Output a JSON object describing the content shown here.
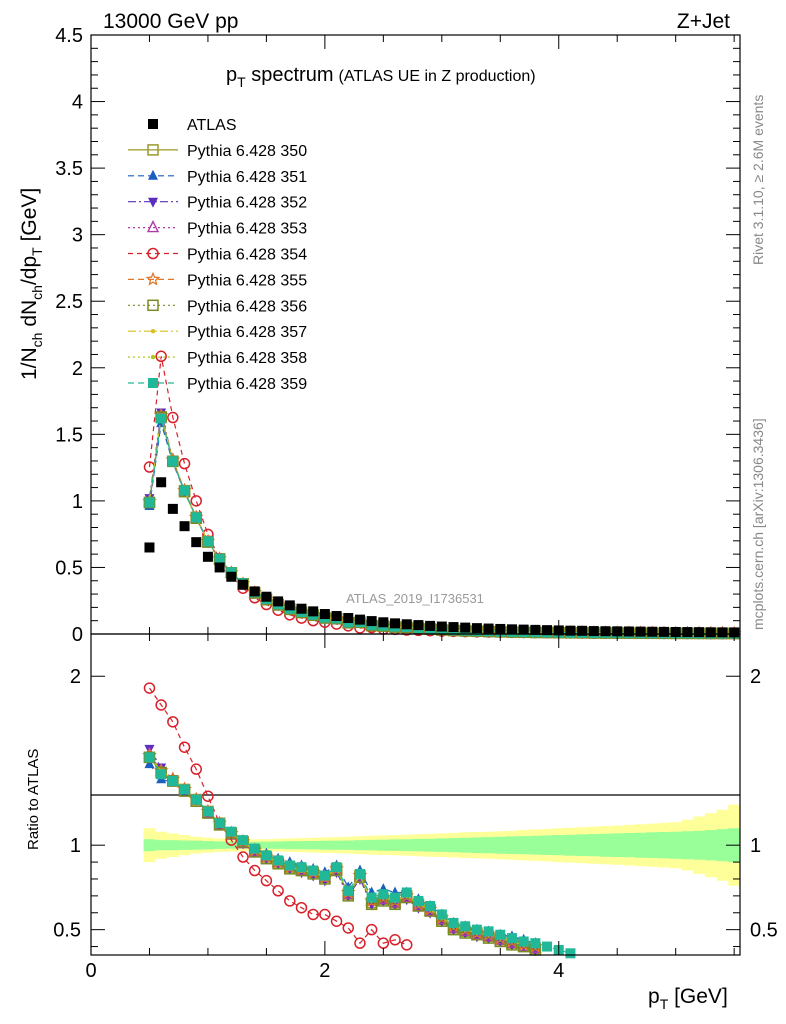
{
  "header": {
    "energy_label": "13000 GeV pp",
    "process_label": "Z+Jet"
  },
  "side_labels": {
    "rivet": "Rivet 3.1.10, ≥ 2.6M events",
    "mcplots": "mcplots.cern.ch [arXiv:1306.3436]"
  },
  "chart_data": {
    "type": "line",
    "title": "p_T spectrum",
    "title_main": "p",
    "title_sub": "T",
    "title_rest": " spectrum",
    "title_note": "(ATLAS UE in Z production)",
    "watermark": "ATLAS_2019_I1736531",
    "xlabel": "p_T [GeV]",
    "xlabel_main": "p",
    "xlabel_sub": "T",
    "xlabel_rest": " [GeV]",
    "ylabel": "1/N_ch dN_ch/dp_T [GeV]",
    "ylabel_parts": {
      "a": "1/N",
      "b": "ch",
      "c": " dN",
      "d": "ch",
      "e": "/dp",
      "f": "T",
      "g": " [GeV]"
    },
    "ratio_ylabel": "Ratio to ATLAS",
    "xlim": [
      0,
      5.55
    ],
    "ylim": [
      0,
      4.5
    ],
    "ratio_ylim": [
      0.35,
      2.25
    ],
    "x_ticks": [
      "0",
      "2",
      "4"
    ],
    "y_ticks": [
      "0",
      "0.5",
      "1",
      "1.5",
      "2",
      "2.5",
      "3",
      "3.5",
      "4",
      "4.5"
    ],
    "ratio_ticks": [
      "0.5",
      "1",
      "2"
    ],
    "legend_position": "top-left",
    "x": [
      0.5,
      0.6,
      0.7,
      0.8,
      0.9,
      1.0,
      1.1,
      1.2,
      1.3,
      1.4,
      1.5,
      1.6,
      1.7,
      1.8,
      1.9,
      2.0,
      2.1,
      2.2,
      2.3,
      2.4,
      2.5,
      2.6,
      2.7,
      2.8,
      2.9,
      3.0,
      3.1,
      3.2,
      3.3,
      3.4,
      3.5,
      3.6,
      3.7,
      3.8,
      3.9,
      4.0,
      4.1,
      4.2,
      4.3,
      4.4,
      4.5,
      4.6,
      4.7,
      4.8,
      4.9,
      5.0,
      5.1,
      5.2,
      5.3,
      5.4,
      5.5
    ],
    "data_series": {
      "name": "ATLAS",
      "color": "#000000",
      "values": [
        0.65,
        1.14,
        0.94,
        0.81,
        0.69,
        0.58,
        0.5,
        0.43,
        0.37,
        0.32,
        0.28,
        0.245,
        0.215,
        0.19,
        0.17,
        0.15,
        0.135,
        0.12,
        0.108,
        0.097,
        0.088,
        0.08,
        0.073,
        0.067,
        0.061,
        0.056,
        0.052,
        0.048,
        0.044,
        0.041,
        0.038,
        0.035,
        0.033,
        0.031,
        0.029,
        0.027,
        0.025,
        0.024,
        0.022,
        0.021,
        0.02,
        0.019,
        0.018,
        0.017,
        0.016,
        0.015,
        0.0145,
        0.014,
        0.013,
        0.0125,
        0.012
      ],
      "uncertainty_inner": [
        0.035,
        0.03,
        0.03,
        0.028,
        0.027,
        0.025,
        0.022,
        0.02,
        0.02,
        0.02,
        0.021,
        0.022,
        0.023,
        0.024,
        0.025,
        0.026,
        0.027,
        0.028,
        0.03,
        0.031,
        0.033,
        0.034,
        0.035,
        0.037,
        0.038,
        0.04,
        0.042,
        0.044,
        0.046,
        0.048,
        0.05,
        0.052,
        0.054,
        0.056,
        0.058,
        0.06,
        0.062,
        0.064,
        0.066,
        0.068,
        0.07,
        0.072,
        0.074,
        0.076,
        0.078,
        0.08,
        0.083,
        0.086,
        0.09,
        0.095,
        0.1
      ],
      "uncertainty_outer": [
        0.1,
        0.08,
        0.07,
        0.06,
        0.05,
        0.045,
        0.04,
        0.038,
        0.036,
        0.035,
        0.036,
        0.038,
        0.04,
        0.042,
        0.044,
        0.046,
        0.048,
        0.05,
        0.053,
        0.056,
        0.058,
        0.06,
        0.062,
        0.065,
        0.068,
        0.07,
        0.073,
        0.076,
        0.078,
        0.08,
        0.083,
        0.086,
        0.09,
        0.093,
        0.096,
        0.1,
        0.103,
        0.106,
        0.11,
        0.113,
        0.116,
        0.12,
        0.124,
        0.128,
        0.132,
        0.136,
        0.15,
        0.17,
        0.19,
        0.21,
        0.24
      ]
    },
    "series": [
      {
        "name": "Pythia 6.428 350",
        "color": "#9a9a2a",
        "marker": "square-open",
        "dash": "",
        "ratio": [
          1.52,
          1.43,
          1.38,
          1.33,
          1.27,
          1.2,
          1.13,
          1.07,
          1.02,
          0.97,
          0.93,
          0.9,
          0.87,
          0.85,
          0.84,
          0.81,
          0.86,
          0.71,
          0.82,
          0.66,
          0.68,
          0.66,
          0.7,
          0.65,
          0.62,
          0.56,
          0.51,
          0.49,
          0.48,
          0.46,
          0.44,
          0.42,
          0.4,
          0.39
        ]
      },
      {
        "name": "Pythia 6.428 351",
        "color": "#1a5fbf",
        "marker": "triangle-up",
        "dash": "6,4",
        "ratio": [
          1.48,
          1.39,
          1.37,
          1.32,
          1.27,
          1.2,
          1.13,
          1.08,
          1.03,
          0.98,
          0.95,
          0.92,
          0.9,
          0.88,
          0.86,
          0.84,
          0.88,
          0.75,
          0.85,
          0.72,
          0.74,
          0.72,
          0.72,
          0.68,
          0.64,
          0.59,
          0.54,
          0.52,
          0.5,
          0.49,
          0.47,
          0.46,
          0.44,
          0.42
        ]
      },
      {
        "name": "Pythia 6.428 352",
        "color": "#5a2fc0",
        "marker": "triangle-down",
        "dash": "8,3,2,3",
        "ratio": [
          1.57,
          1.46,
          1.39,
          1.32,
          1.27,
          1.19,
          1.12,
          1.06,
          1.01,
          0.96,
          0.92,
          0.89,
          0.86,
          0.84,
          0.82,
          0.79,
          0.84,
          0.7,
          0.8,
          0.65,
          0.67,
          0.65,
          0.68,
          0.63,
          0.6,
          0.55,
          0.5,
          0.48,
          0.46,
          0.45,
          0.43,
          0.41,
          0.4,
          0.38
        ]
      },
      {
        "name": "Pythia 6.428 353",
        "color": "#b03aa8",
        "marker": "triangle-open",
        "dash": "2,3",
        "ratio": [
          1.54,
          1.44,
          1.39,
          1.33,
          1.27,
          1.19,
          1.12,
          1.06,
          1.01,
          0.96,
          0.93,
          0.9,
          0.87,
          0.85,
          0.84,
          0.81,
          0.86,
          0.71,
          0.81,
          0.67,
          0.68,
          0.66,
          0.69,
          0.64,
          0.61,
          0.56,
          0.51,
          0.49,
          0.47,
          0.46,
          0.44,
          0.42,
          0.4,
          0.39
        ]
      },
      {
        "name": "Pythia 6.428 354",
        "color": "#d8202a",
        "marker": "circle-open",
        "dash": "5,4",
        "ratio": [
          1.93,
          1.83,
          1.73,
          1.58,
          1.45,
          1.29,
          1.13,
          1.03,
          0.93,
          0.85,
          0.79,
          0.73,
          0.67,
          0.63,
          0.59,
          0.59,
          0.55,
          0.51,
          0.42,
          0.5,
          0.42,
          0.44,
          0.41
        ]
      },
      {
        "name": "Pythia 6.428 355",
        "color": "#e0762a",
        "marker": "star",
        "dash": "6,4",
        "ratio": [
          1.53,
          1.44,
          1.39,
          1.33,
          1.27,
          1.2,
          1.13,
          1.07,
          1.02,
          0.97,
          0.93,
          0.9,
          0.87,
          0.86,
          0.84,
          0.81,
          0.86,
          0.72,
          0.82,
          0.67,
          0.69,
          0.67,
          0.7,
          0.65,
          0.62,
          0.57,
          0.52,
          0.5,
          0.48,
          0.47,
          0.45,
          0.43,
          0.41,
          0.4
        ]
      },
      {
        "name": "Pythia 6.428 356",
        "color": "#7a8a22",
        "marker": "square-open",
        "dash": "2,3",
        "ratio": [
          1.52,
          1.43,
          1.38,
          1.32,
          1.26,
          1.19,
          1.12,
          1.07,
          1.02,
          0.96,
          0.92,
          0.89,
          0.86,
          0.85,
          0.83,
          0.8,
          0.85,
          0.7,
          0.81,
          0.65,
          0.67,
          0.65,
          0.69,
          0.64,
          0.61,
          0.55,
          0.5,
          0.48,
          0.47,
          0.45,
          0.43,
          0.41,
          0.4,
          0.38
        ]
      },
      {
        "name": "Pythia 6.428 357",
        "color": "#d8c020",
        "marker": "small-dot",
        "dash": "8,3,2,3",
        "ratio": [
          1.53,
          1.44,
          1.39,
          1.33,
          1.27,
          1.2,
          1.13,
          1.07,
          1.02,
          0.97,
          0.93,
          0.9,
          0.87,
          0.85,
          0.84,
          0.81,
          0.86,
          0.72,
          0.82,
          0.67,
          0.69,
          0.67,
          0.7,
          0.65,
          0.62,
          0.57,
          0.52,
          0.5,
          0.48,
          0.47,
          0.45,
          0.43,
          0.41,
          0.4
        ]
      },
      {
        "name": "Pythia 6.428 358",
        "color": "#a8c820",
        "marker": "small-dot",
        "dash": "2,3",
        "ratio": [
          1.53,
          1.44,
          1.39,
          1.33,
          1.27,
          1.2,
          1.13,
          1.07,
          1.02,
          0.97,
          0.93,
          0.9,
          0.87,
          0.85,
          0.84,
          0.81,
          0.86,
          0.72,
          0.82,
          0.67,
          0.69,
          0.67,
          0.7,
          0.65,
          0.62,
          0.57,
          0.52,
          0.5,
          0.48,
          0.47,
          0.45,
          0.43,
          0.41,
          0.4
        ]
      },
      {
        "name": "Pythia 6.428 359",
        "color": "#20b898",
        "marker": "square-filled",
        "dash": "6,4",
        "ratio": [
          1.52,
          1.42,
          1.38,
          1.33,
          1.27,
          1.2,
          1.13,
          1.08,
          1.03,
          0.98,
          0.94,
          0.91,
          0.88,
          0.87,
          0.85,
          0.82,
          0.87,
          0.73,
          0.83,
          0.69,
          0.71,
          0.69,
          0.72,
          0.67,
          0.64,
          0.59,
          0.54,
          0.52,
          0.5,
          0.49,
          0.47,
          0.45,
          0.43,
          0.42,
          0.4,
          0.38,
          0.36
        ]
      }
    ]
  }
}
